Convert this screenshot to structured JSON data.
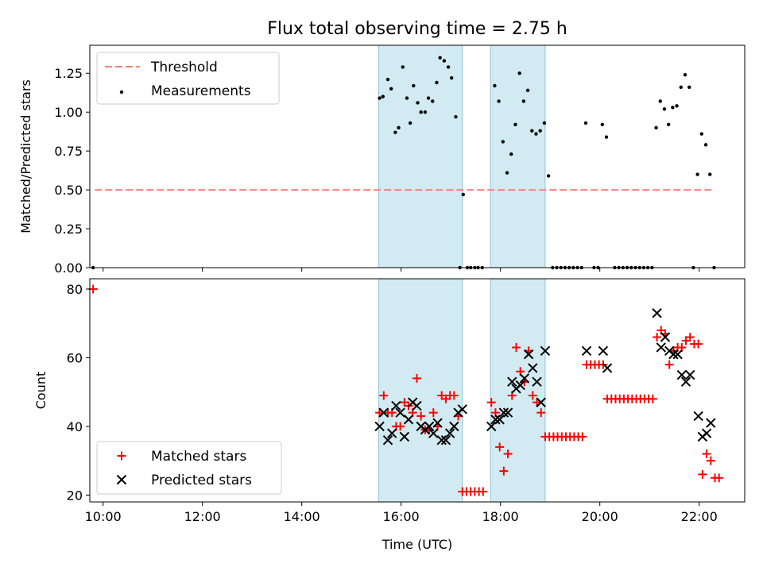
{
  "title": "Flux total observing time = 2.75 h",
  "chart_data": [
    {
      "type": "scatter",
      "ylabel": "Matched/Predicted stars",
      "xlim": [
        "09:44",
        "22:55"
      ],
      "ylim": [
        0,
        1.43
      ],
      "y_ticks": [
        "0.00",
        "0.25",
        "0.50",
        "0.75",
        "1.00",
        "1.25"
      ],
      "x_ticks": [
        "10:00",
        "12:00",
        "14:00",
        "16:00",
        "18:00",
        "20:00",
        "22:00"
      ],
      "shaded_intervals": [
        [
          "15:33",
          "17:14"
        ],
        [
          "17:48",
          "18:54"
        ]
      ],
      "shade_color": "#add8e6",
      "threshold": {
        "name": "Threshold",
        "x": [
          "09:50",
          "22:18"
        ],
        "y": 0.5,
        "color": "#ff7f7f"
      },
      "series": [
        {
          "name": "Measurements",
          "color": "#000000",
          "points": [
            [
              "09:48",
              0.0
            ],
            [
              "15:34",
              1.09
            ],
            [
              "15:38",
              1.1
            ],
            [
              "15:44",
              1.21
            ],
            [
              "15:48",
              1.15
            ],
            [
              "15:53",
              0.87
            ],
            [
              "15:57",
              0.9
            ],
            [
              "16:02",
              1.29
            ],
            [
              "16:07",
              1.09
            ],
            [
              "16:11",
              0.93
            ],
            [
              "16:15",
              1.17
            ],
            [
              "16:20",
              1.06
            ],
            [
              "16:24",
              1.0
            ],
            [
              "16:29",
              1.0
            ],
            [
              "16:33",
              1.09
            ],
            [
              "16:38",
              1.07
            ],
            [
              "16:43",
              1.19
            ],
            [
              "16:47",
              1.35
            ],
            [
              "16:52",
              1.33
            ],
            [
              "16:57",
              1.29
            ],
            [
              "17:01",
              1.22
            ],
            [
              "17:06",
              0.97
            ],
            [
              "17:11",
              0.0
            ],
            [
              "17:15",
              0.47
            ],
            [
              "17:20",
              0.0
            ],
            [
              "17:24",
              0.0
            ],
            [
              "17:29",
              0.0
            ],
            [
              "17:33",
              0.0
            ],
            [
              "17:38",
              0.0
            ],
            [
              "17:53",
              1.17
            ],
            [
              "17:58",
              1.07
            ],
            [
              "18:03",
              0.81
            ],
            [
              "18:08",
              0.61
            ],
            [
              "18:13",
              0.73
            ],
            [
              "18:18",
              0.92
            ],
            [
              "18:23",
              1.25
            ],
            [
              "18:28",
              1.07
            ],
            [
              "18:33",
              1.14
            ],
            [
              "18:38",
              0.88
            ],
            [
              "18:43",
              0.86
            ],
            [
              "18:48",
              0.88
            ],
            [
              "18:53",
              0.93
            ],
            [
              "18:58",
              0.59
            ],
            [
              "19:03",
              0.0
            ],
            [
              "19:08",
              0.0
            ],
            [
              "19:13",
              0.0
            ],
            [
              "19:18",
              0.0
            ],
            [
              "19:23",
              0.0
            ],
            [
              "19:28",
              0.0
            ],
            [
              "19:33",
              0.0
            ],
            [
              "19:38",
              0.0
            ],
            [
              "19:43",
              0.93
            ],
            [
              "19:53",
              0.0
            ],
            [
              "19:58",
              0.0
            ],
            [
              "20:03",
              0.92
            ],
            [
              "20:08",
              0.84
            ],
            [
              "20:18",
              0.0
            ],
            [
              "20:23",
              0.0
            ],
            [
              "20:28",
              0.0
            ],
            [
              "20:33",
              0.0
            ],
            [
              "20:38",
              0.0
            ],
            [
              "20:43",
              0.0
            ],
            [
              "20:48",
              0.0
            ],
            [
              "20:53",
              0.0
            ],
            [
              "20:58",
              0.0
            ],
            [
              "21:03",
              0.0
            ],
            [
              "21:08",
              0.9
            ],
            [
              "21:13",
              1.07
            ],
            [
              "21:18",
              1.02
            ],
            [
              "21:23",
              0.92
            ],
            [
              "21:28",
              1.03
            ],
            [
              "21:33",
              1.04
            ],
            [
              "21:38",
              1.16
            ],
            [
              "21:43",
              1.24
            ],
            [
              "21:48",
              1.16
            ],
            [
              "21:53",
              0.0
            ],
            [
              "21:58",
              0.6
            ],
            [
              "22:03",
              0.86
            ],
            [
              "22:08",
              0.79
            ],
            [
              "22:13",
              0.6
            ],
            [
              "22:18",
              0.0
            ]
          ]
        }
      ],
      "legend_location": "upper left"
    },
    {
      "type": "scatter",
      "xlabel": "Time (UTC)",
      "ylabel": "Count",
      "xlim": [
        "09:44",
        "22:55"
      ],
      "ylim": [
        18,
        83
      ],
      "y_ticks": [
        "20",
        "40",
        "60",
        "80"
      ],
      "x_ticks": [
        "10:00",
        "12:00",
        "14:00",
        "16:00",
        "18:00",
        "20:00",
        "22:00"
      ],
      "shaded_intervals": [
        [
          "15:33",
          "17:14"
        ],
        [
          "17:48",
          "18:54"
        ]
      ],
      "shade_color": "#add8e6",
      "series": [
        {
          "name": "Matched stars",
          "marker": "+",
          "color": "#ff0000",
          "points": [
            [
              "09:48",
              80
            ],
            [
              "15:34",
              44
            ],
            [
              "15:39",
              49
            ],
            [
              "15:44",
              44
            ],
            [
              "15:49",
              44
            ],
            [
              "15:54",
              40
            ],
            [
              "15:59",
              40
            ],
            [
              "16:04",
              47
            ],
            [
              "16:09",
              46
            ],
            [
              "16:14",
              44
            ],
            [
              "16:19",
              54
            ],
            [
              "16:24",
              43
            ],
            [
              "16:29",
              39
            ],
            [
              "16:34",
              39
            ],
            [
              "16:39",
              44
            ],
            [
              "16:44",
              40
            ],
            [
              "16:49",
              49
            ],
            [
              "16:54",
              48
            ],
            [
              "16:59",
              49
            ],
            [
              "17:04",
              49
            ],
            [
              "17:09",
              43
            ],
            [
              "17:14",
              21
            ],
            [
              "17:19",
              21
            ],
            [
              "17:24",
              21
            ],
            [
              "17:29",
              21
            ],
            [
              "17:34",
              21
            ],
            [
              "17:39",
              21
            ],
            [
              "17:49",
              47
            ],
            [
              "17:54",
              44
            ],
            [
              "17:59",
              34
            ],
            [
              "18:04",
              27
            ],
            [
              "18:09",
              32
            ],
            [
              "18:14",
              49
            ],
            [
              "18:19",
              63
            ],
            [
              "18:24",
              56
            ],
            [
              "18:29",
              53
            ],
            [
              "18:34",
              62
            ],
            [
              "18:39",
              49
            ],
            [
              "18:44",
              47
            ],
            [
              "18:49",
              44
            ],
            [
              "18:54",
              37
            ],
            [
              "18:59",
              37
            ],
            [
              "19:04",
              37
            ],
            [
              "19:09",
              37
            ],
            [
              "19:14",
              37
            ],
            [
              "19:19",
              37
            ],
            [
              "19:24",
              37
            ],
            [
              "19:29",
              37
            ],
            [
              "19:34",
              37
            ],
            [
              "19:39",
              37
            ],
            [
              "19:44",
              58
            ],
            [
              "19:49",
              58
            ],
            [
              "19:54",
              58
            ],
            [
              "19:59",
              58
            ],
            [
              "20:04",
              58
            ],
            [
              "20:09",
              48
            ],
            [
              "20:14",
              48
            ],
            [
              "20:19",
              48
            ],
            [
              "20:24",
              48
            ],
            [
              "20:29",
              48
            ],
            [
              "20:34",
              48
            ],
            [
              "20:39",
              48
            ],
            [
              "20:44",
              48
            ],
            [
              "20:49",
              48
            ],
            [
              "20:54",
              48
            ],
            [
              "20:59",
              48
            ],
            [
              "21:04",
              48
            ],
            [
              "21:09",
              66
            ],
            [
              "21:14",
              68
            ],
            [
              "21:19",
              67
            ],
            [
              "21:24",
              58
            ],
            [
              "21:29",
              62
            ],
            [
              "21:34",
              63
            ],
            [
              "21:39",
              63
            ],
            [
              "21:44",
              65
            ],
            [
              "21:49",
              66
            ],
            [
              "21:54",
              64
            ],
            [
              "21:59",
              64
            ],
            [
              "22:04",
              26
            ],
            [
              "22:09",
              32
            ],
            [
              "22:14",
              30
            ],
            [
              "22:19",
              25
            ],
            [
              "22:24",
              25
            ]
          ]
        },
        {
          "name": "Predicted stars",
          "marker": "x",
          "color": "#000000",
          "points": [
            [
              "15:34",
              40
            ],
            [
              "15:39",
              44
            ],
            [
              "15:44",
              36
            ],
            [
              "15:49",
              38
            ],
            [
              "15:54",
              46
            ],
            [
              "15:59",
              44
            ],
            [
              "16:04",
              37
            ],
            [
              "16:09",
              42
            ],
            [
              "16:14",
              47
            ],
            [
              "16:19",
              46
            ],
            [
              "16:24",
              40
            ],
            [
              "16:29",
              39
            ],
            [
              "16:34",
              40
            ],
            [
              "16:39",
              38
            ],
            [
              "16:44",
              41
            ],
            [
              "16:49",
              36
            ],
            [
              "16:54",
              36
            ],
            [
              "16:59",
              38
            ],
            [
              "17:04",
              40
            ],
            [
              "17:09",
              44
            ],
            [
              "17:14",
              45
            ],
            [
              "17:49",
              40
            ],
            [
              "17:54",
              42
            ],
            [
              "17:59",
              42
            ],
            [
              "18:04",
              44
            ],
            [
              "18:09",
              44
            ],
            [
              "18:14",
              53
            ],
            [
              "18:19",
              51
            ],
            [
              "18:24",
              52
            ],
            [
              "18:29",
              54
            ],
            [
              "18:34",
              61
            ],
            [
              "18:39",
              57
            ],
            [
              "18:44",
              53
            ],
            [
              "18:49",
              47
            ],
            [
              "18:54",
              62
            ],
            [
              "19:44",
              62
            ],
            [
              "20:04",
              62
            ],
            [
              "20:09",
              57
            ],
            [
              "21:09",
              73
            ],
            [
              "21:14",
              63
            ],
            [
              "21:19",
              66
            ],
            [
              "21:24",
              62
            ],
            [
              "21:29",
              61
            ],
            [
              "21:34",
              61
            ],
            [
              "21:39",
              55
            ],
            [
              "21:44",
              53
            ],
            [
              "21:49",
              55
            ],
            [
              "21:59",
              43
            ],
            [
              "22:04",
              37
            ],
            [
              "22:09",
              38
            ],
            [
              "22:14",
              41
            ]
          ]
        }
      ],
      "legend_location": "lower left"
    }
  ]
}
